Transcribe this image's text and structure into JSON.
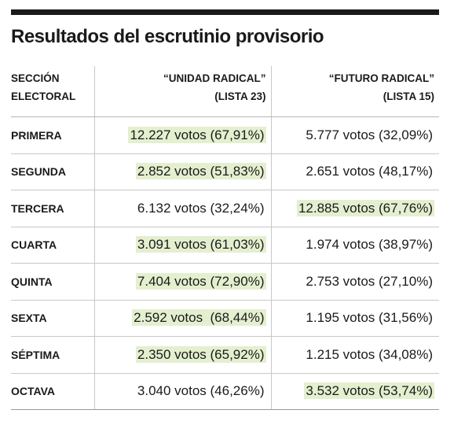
{
  "title": "Resultados del escrutinio provisorio",
  "colors": {
    "highlight": "#e4efcf",
    "text": "#1a1a1a",
    "rule": "#c8c8c8"
  },
  "header": {
    "col1": [
      "SECCIÓN",
      "ELECTORAL"
    ],
    "col2": [
      "“UNIDAD RADICAL”",
      "(LISTA 23)"
    ],
    "col3": [
      "“FUTURO RADICAL”",
      "(LISTA 15)"
    ]
  },
  "rows": [
    {
      "section": "PRIMERA",
      "unidad": "12.227 votos (67,91%)",
      "futuro": "5.777 votos (32,09%)",
      "winner": "unidad"
    },
    {
      "section": "SEGUNDA",
      "unidad": "2.852 votos (51,83%)",
      "futuro": "2.651 votos (48,17%)",
      "winner": "unidad"
    },
    {
      "section": "TERCERA",
      "unidad": "6.132 votos (32,24%)",
      "futuro": "12.885 votos (67,76%)",
      "winner": "futuro"
    },
    {
      "section": "CUARTA",
      "unidad": "3.091 votos (61,03%)",
      "futuro": "1.974 votos (38,97%)",
      "winner": "unidad"
    },
    {
      "section": "QUINTA",
      "unidad": "7.404 votos (72,90%)",
      "futuro": "2.753 votos (27,10%)",
      "winner": "unidad"
    },
    {
      "section": "SEXTA",
      "unidad": "2.592 votos  (68,44%)",
      "futuro": "1.195 votos (31,56%)",
      "winner": "unidad"
    },
    {
      "section": "SÉPTIMA",
      "unidad": "2.350 votos (65,92%)",
      "futuro": "1.215 votos (34,08%)",
      "winner": "unidad"
    },
    {
      "section": "OCTAVA",
      "unidad": "3.040 votos (46,26%)",
      "futuro": "3.532 votos (53,74%)",
      "winner": "futuro"
    }
  ]
}
